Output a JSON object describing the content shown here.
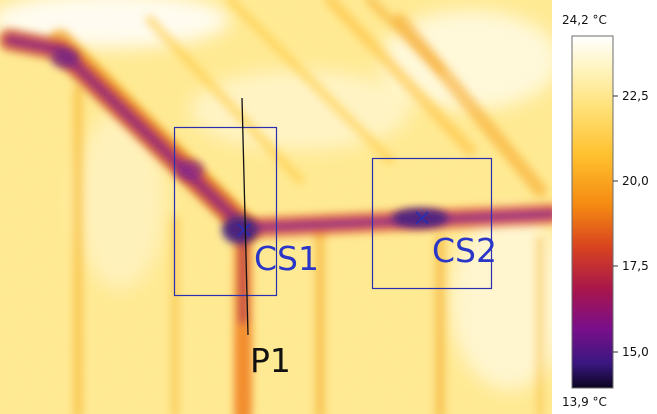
{
  "image": {
    "kind": "thermal-image",
    "palette": [
      "#ffffff",
      "#fff6c8",
      "#ffe580",
      "#ffc233",
      "#f58a12",
      "#d8431f",
      "#a8164c",
      "#7a0f8a",
      "#3a1780",
      "#0b0420"
    ]
  },
  "scale": {
    "max_label": "24,2 °C",
    "min_label": "13,9 °C",
    "max_value": 24.2,
    "min_value": 13.9,
    "ticks": [
      {
        "value": 22.5,
        "label": "22,5"
      },
      {
        "value": 20.0,
        "label": "20,0"
      },
      {
        "value": 17.5,
        "label": "17,5"
      },
      {
        "value": 15.0,
        "label": "15,0"
      }
    ]
  },
  "markers": {
    "cs1": {
      "label": "CS1"
    },
    "cs2": {
      "label": "CS2"
    },
    "p1": {
      "label": "P1"
    }
  },
  "colors": {
    "marker_box": "#2a2fb0",
    "marker_text": "#2a36c8",
    "line": "#111111"
  }
}
